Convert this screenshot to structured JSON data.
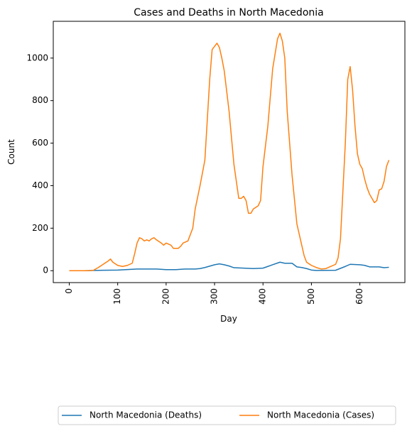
{
  "chart_data": {
    "type": "line",
    "title": "Cases and Deaths in North Macedonia",
    "x_label": "Day",
    "y_label": "Count",
    "xlim": [
      -33,
      693
    ],
    "ylim": [
      -56,
      1173
    ],
    "xticks": [
      0,
      100,
      200,
      300,
      400,
      500,
      600
    ],
    "yticks": [
      0,
      200,
      400,
      600,
      800,
      1000
    ],
    "legend": "below",
    "series": [
      {
        "name": "North Macedonia (Deaths)",
        "color": "#1f77b4",
        "x": [
          0,
          30,
          70,
          100,
          140,
          180,
          200,
          220,
          240,
          260,
          270,
          280,
          300,
          310,
          320,
          330,
          340,
          360,
          380,
          400,
          410,
          420,
          435,
          445,
          460,
          470,
          480,
          490,
          500,
          510,
          550,
          570,
          580,
          600,
          610,
          620,
          640,
          650,
          660
        ],
        "values": [
          0,
          0,
          2,
          3,
          8,
          8,
          5,
          5,
          8,
          8,
          10,
          15,
          28,
          32,
          28,
          22,
          14,
          12,
          10,
          12,
          20,
          28,
          40,
          35,
          35,
          18,
          15,
          10,
          3,
          1,
          2,
          20,
          30,
          28,
          25,
          18,
          18,
          14,
          16
        ]
      },
      {
        "name": "North Macedonia (Cases)",
        "color": "#ff7f0e",
        "x": [
          0,
          10,
          20,
          30,
          40,
          50,
          60,
          70,
          80,
          85,
          90,
          100,
          110,
          120,
          130,
          135,
          140,
          145,
          150,
          155,
          160,
          165,
          170,
          175,
          180,
          190,
          195,
          200,
          210,
          215,
          225,
          230,
          235,
          245,
          255,
          260,
          270,
          280,
          290,
          295,
          305,
          310,
          315,
          320,
          330,
          340,
          350,
          355,
          360,
          365,
          370,
          375,
          380,
          390,
          395,
          400,
          410,
          420,
          430,
          435,
          440,
          445,
          450,
          460,
          470,
          480,
          485,
          490,
          500,
          510,
          520,
          530,
          540,
          550,
          555,
          560,
          570,
          575,
          580,
          585,
          590,
          595,
          600,
          605,
          610,
          615,
          620,
          625,
          630,
          635,
          640,
          645,
          650,
          655,
          660
        ],
        "values": [
          0,
          0,
          0,
          0,
          0,
          2,
          15,
          30,
          45,
          55,
          40,
          25,
          20,
          25,
          35,
          80,
          130,
          155,
          150,
          140,
          145,
          140,
          150,
          155,
          145,
          130,
          120,
          130,
          120,
          105,
          105,
          115,
          130,
          140,
          200,
          290,
          400,
          520,
          900,
          1040,
          1070,
          1050,
          1000,
          940,
          750,
          500,
          340,
          340,
          350,
          330,
          270,
          270,
          290,
          305,
          330,
          490,
          680,
          950,
          1090,
          1117,
          1080,
          1000,
          750,
          450,
          220,
          120,
          70,
          40,
          25,
          15,
          8,
          10,
          20,
          30,
          60,
          150,
          600,
          900,
          960,
          850,
          680,
          550,
          500,
          480,
          430,
          390,
          360,
          340,
          320,
          330,
          380,
          385,
          420,
          490,
          520
        ]
      }
    ]
  }
}
